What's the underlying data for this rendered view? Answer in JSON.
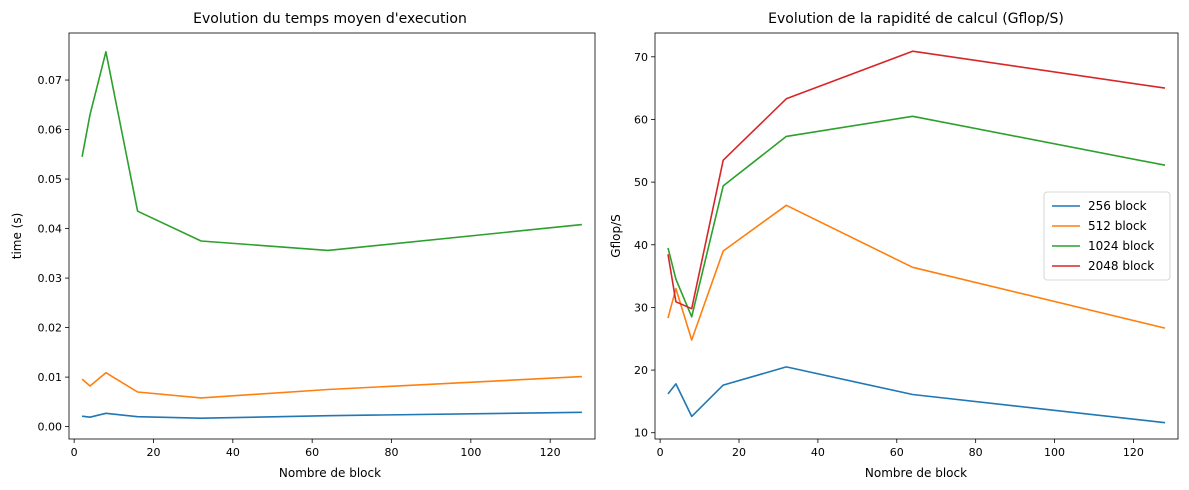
{
  "chart_data": [
    {
      "type": "line",
      "title": "Evolution du temps moyen d'execution",
      "xlabel": "Nombre de block",
      "ylabel": "time (s)",
      "xlim": [
        -1.3,
        131.3
      ],
      "ylim": [
        -0.0025,
        0.0795
      ],
      "xticks": [
        0,
        20,
        40,
        60,
        80,
        100,
        120
      ],
      "xtick_labels": [
        "0",
        "20",
        "40",
        "60",
        "80",
        "100",
        "120"
      ],
      "yticks": [
        0.0,
        0.01,
        0.02,
        0.03,
        0.04,
        0.05,
        0.06,
        0.07
      ],
      "ytick_labels": [
        "0.00",
        "0.01",
        "0.02",
        "0.03",
        "0.04",
        "0.05",
        "0.06",
        "0.07"
      ],
      "grid": false,
      "legend": "none",
      "x": [
        2,
        4,
        8,
        16,
        32,
        64,
        128
      ],
      "series": [
        {
          "color": "#1f77b4",
          "values": [
            0.0021,
            0.0019,
            0.0027,
            0.002,
            0.0017,
            0.0022,
            0.0029
          ]
        },
        {
          "color": "#ff7f0e",
          "values": [
            0.0096,
            0.0082,
            0.0109,
            0.007,
            0.0058,
            0.0075,
            0.0101
          ]
        },
        {
          "color": "#2ca02c",
          "values": [
            0.0545,
            0.063,
            0.0757,
            0.0435,
            0.0375,
            0.0356,
            0.0408
          ]
        }
      ]
    },
    {
      "type": "line",
      "title": "Evolution de la rapidité de calcul (Gflop/S)",
      "xlabel": "Nombre de block",
      "ylabel": "Gflop/S",
      "xlim": [
        -1.3,
        131.3
      ],
      "ylim": [
        9.0,
        73.8
      ],
      "xticks": [
        0,
        20,
        40,
        60,
        80,
        100,
        120
      ],
      "xtick_labels": [
        "0",
        "20",
        "40",
        "60",
        "80",
        "100",
        "120"
      ],
      "yticks": [
        10,
        20,
        30,
        40,
        50,
        60,
        70
      ],
      "ytick_labels": [
        "10",
        "20",
        "30",
        "40",
        "50",
        "60",
        "70"
      ],
      "grid": false,
      "legend": "center-right",
      "x": [
        2,
        4,
        8,
        16,
        32,
        64,
        128
      ],
      "series": [
        {
          "name": "256 block",
          "color": "#1f77b4",
          "values": [
            16.2,
            17.8,
            12.6,
            17.6,
            20.5,
            16.1,
            11.6
          ]
        },
        {
          "name": "512 block",
          "color": "#ff7f0e",
          "values": [
            28.3,
            33.0,
            24.8,
            39.0,
            46.3,
            36.4,
            26.7
          ]
        },
        {
          "name": "1024 block",
          "color": "#2ca02c",
          "values": [
            39.5,
            34.5,
            28.5,
            49.4,
            57.3,
            60.5,
            52.7
          ]
        },
        {
          "name": "2048 block",
          "color": "#d62728",
          "values": [
            38.5,
            30.9,
            29.8,
            53.5,
            63.3,
            70.9,
            65.0
          ]
        }
      ]
    }
  ]
}
